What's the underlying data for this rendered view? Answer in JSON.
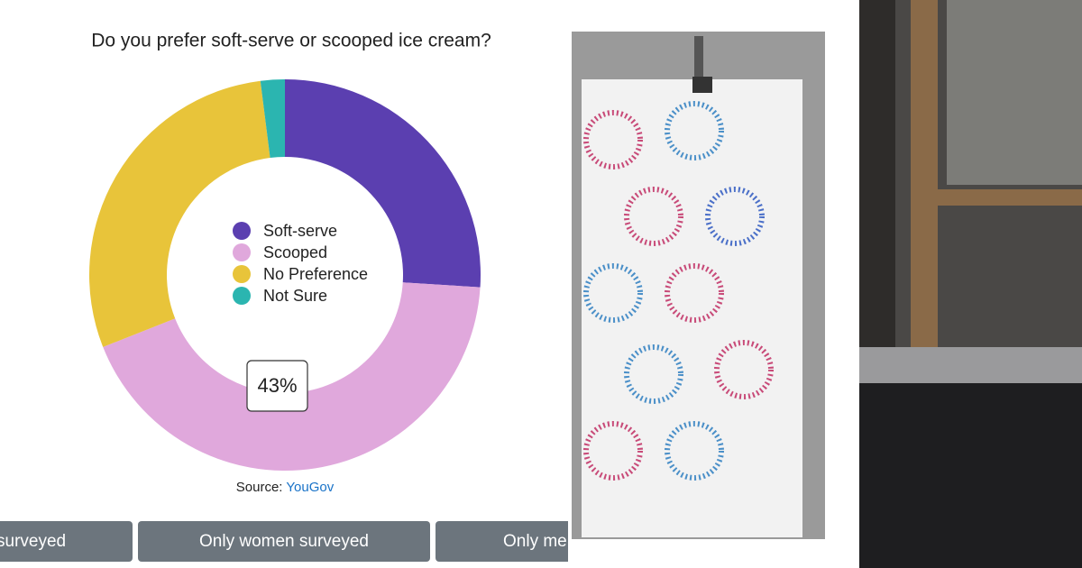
{
  "chart_data": {
    "type": "donut",
    "title": "Do you prefer soft-serve or scooped ice cream?",
    "categories": [
      "Soft-serve",
      "Scooped",
      "No Preference",
      "Not Sure"
    ],
    "values": [
      26,
      43,
      29,
      2
    ],
    "value_labels": [
      null,
      "43%",
      null,
      null
    ],
    "colors": [
      "#5b3fb0",
      "#e0a8dc",
      "#e8c43a",
      "#2bb5b0"
    ],
    "legend": "center"
  },
  "source": {
    "label": "Source:",
    "link": "YouGov"
  },
  "buttons": [
    "surveyed",
    "Only women surveyed",
    "Only me"
  ]
}
